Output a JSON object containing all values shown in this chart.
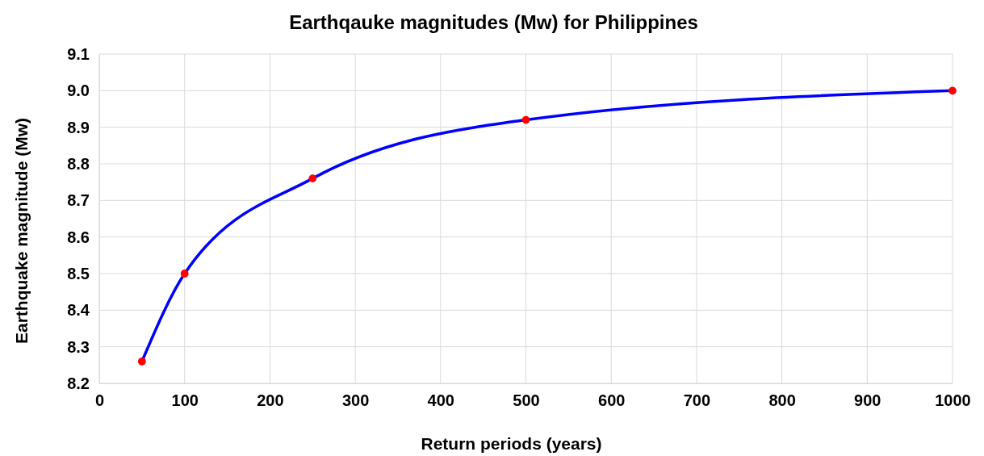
{
  "chart_data": {
    "type": "line",
    "title": "Earthqauke magnitudes (Mw) for Philippines",
    "xlabel": "Return periods (years)",
    "ylabel": "Earthquake magnitude (Mw)",
    "x": [
      50,
      100,
      250,
      500,
      1000
    ],
    "series": [
      {
        "color": "#0000ff",
        "values": [
          8.26,
          8.5,
          8.76,
          8.92,
          9.0
        ],
        "marker": "none"
      },
      {
        "type": "scatter",
        "color": "#ff0000",
        "values": [
          8.26,
          8.5,
          8.76,
          8.92,
          9.0
        ],
        "marker": "circle"
      }
    ],
    "xlim": [
      0,
      1000
    ],
    "xticks": [
      0,
      100,
      200,
      300,
      400,
      500,
      600,
      700,
      800,
      900,
      1000
    ],
    "ylim": [
      8.2,
      9.1
    ],
    "yticks": [
      {
        "value": 8.2,
        "label": "8.2"
      },
      {
        "value": 8.3,
        "label": "8.3"
      },
      {
        "value": 8.4,
        "label": "8.4"
      },
      {
        "value": 8.5,
        "label": "8.5"
      },
      {
        "value": 8.6,
        "label": "8.6"
      },
      {
        "value": 8.7,
        "label": "8.7"
      },
      {
        "value": 8.8,
        "label": "8.8"
      },
      {
        "value": 8.9,
        "label": "8.9"
      },
      {
        "value": 9.0,
        "label": "9.0"
      },
      {
        "value": 9.1,
        "label": "9.1"
      }
    ],
    "grid": true
  }
}
